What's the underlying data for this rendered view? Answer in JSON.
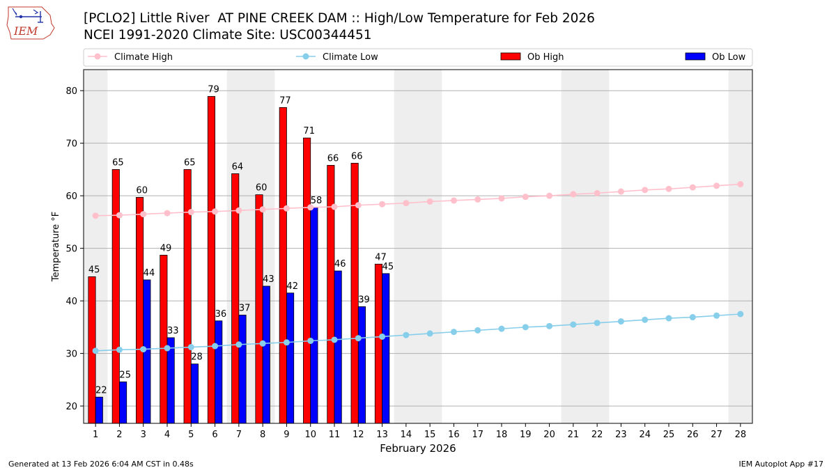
{
  "header": {
    "title_line1": "[PCLO2] Little River  AT PINE CREEK DAM :: High/Low Temperature for Feb 2026",
    "title_line2": "NCEI 1991-2020 Climate Site: USC00344451"
  },
  "logo": {
    "text": "IEM"
  },
  "footer": {
    "left": "Generated at 13 Feb 2026 6:04 AM CST in 0.48s",
    "right": "IEM Autoplot App #17"
  },
  "colors": {
    "ob_high": "#ff0000",
    "ob_low": "#0000ff",
    "climate_high": "#ffc0cb",
    "climate_low": "#87ceeb",
    "weekend_shade": "#eeeeee",
    "grid": "#b0b0b0"
  },
  "chart_data": {
    "type": "bar",
    "xlabel": "February 2026",
    "ylabel": "Temperature °F",
    "ylim": [
      16.7,
      84
    ],
    "yticks": [
      20,
      30,
      40,
      50,
      60,
      70,
      80
    ],
    "grid": "horizontal",
    "legend_position": "top",
    "legend": [
      "Climate High",
      "Climate Low",
      "Ob High",
      "Ob Low"
    ],
    "days": [
      1,
      2,
      3,
      4,
      5,
      6,
      7,
      8,
      9,
      10,
      11,
      12,
      13,
      14,
      15,
      16,
      17,
      18,
      19,
      20,
      21,
      22,
      23,
      24,
      25,
      26,
      27,
      28
    ],
    "shaded_day_ranges": [
      [
        1,
        1
      ],
      [
        7,
        8
      ],
      [
        14,
        15
      ],
      [
        21,
        22
      ],
      [
        28,
        28
      ]
    ],
    "ob_high": [
      44.6,
      65,
      59.7,
      48.7,
      65,
      78.9,
      64.2,
      60.2,
      76.8,
      71,
      65.8,
      66.2,
      47
    ],
    "ob_low": [
      21.7,
      24.6,
      44,
      33,
      28,
      36.2,
      37.3,
      42.8,
      41.5,
      57.8,
      45.7,
      38.9,
      45.2
    ],
    "ob_high_labels": [
      "45",
      "65",
      "60",
      "49",
      "65",
      "79",
      "64",
      "60",
      "77",
      "71",
      "66",
      "66",
      "47"
    ],
    "ob_low_labels": [
      "22",
      "25",
      "44",
      "33",
      "28",
      "36",
      "37",
      "43",
      "42",
      "58",
      "46",
      "39",
      "45"
    ],
    "climate_high": [
      56.2,
      56.3,
      56.5,
      56.7,
      56.9,
      57.0,
      57.2,
      57.4,
      57.6,
      57.8,
      57.9,
      58.2,
      58.4,
      58.6,
      58.9,
      59.1,
      59.3,
      59.5,
      59.8,
      60.0,
      60.3,
      60.5,
      60.8,
      61.1,
      61.3,
      61.6,
      61.9,
      62.2
    ],
    "climate_low": [
      30.5,
      30.7,
      30.8,
      31.0,
      31.2,
      31.4,
      31.7,
      31.9,
      32.1,
      32.4,
      32.6,
      32.9,
      33.2,
      33.5,
      33.8,
      34.1,
      34.4,
      34.7,
      35.0,
      35.2,
      35.5,
      35.8,
      36.1,
      36.4,
      36.7,
      36.9,
      37.2,
      37.5
    ]
  }
}
